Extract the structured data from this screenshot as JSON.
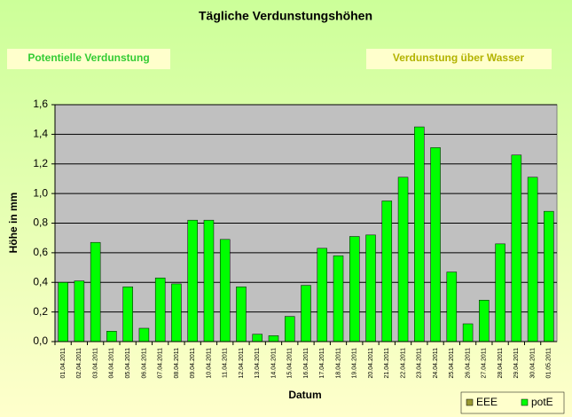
{
  "chart_data": {
    "type": "bar",
    "title": "Tägliche Verdunstungshöhen",
    "buttons": [
      "Potentielle Verdunstung",
      "Verdunstung über Wasser"
    ],
    "x_label": "Datum",
    "y_label": "Höhe in mm",
    "categories": [
      "01.04.2011",
      "02.04.2011",
      "03.04.2011",
      "04.04.2011",
      "05.04.2011",
      "06.04.2011",
      "07.04.2011",
      "08.04.2011",
      "09.04.2011",
      "10.04.2011",
      "11.04.2011",
      "12.04.2011",
      "13.04.2011",
      "14.04.2011",
      "15.04.2011",
      "16.04.2011",
      "17.04.2011",
      "18.04.2011",
      "19.04.2011",
      "20.04.2011",
      "21.04.2011",
      "22.04.2011",
      "23.04.2011",
      "24.04.2011",
      "25.04.2011",
      "26.04.2011",
      "27.04.2011",
      "28.04.2011",
      "29.04.2011",
      "30.04.2011",
      "01.05.2011"
    ],
    "series": [
      {
        "name": "EEE",
        "color": "#999933",
        "values": [
          null,
          null,
          null,
          null,
          null,
          null,
          null,
          null,
          null,
          null,
          null,
          null,
          null,
          null,
          null,
          null,
          null,
          null,
          null,
          null,
          null,
          null,
          null,
          null,
          null,
          null,
          null,
          null,
          null,
          null,
          null
        ]
      },
      {
        "name": "potE",
        "color": "#00ff00",
        "values": [
          0.4,
          0.41,
          0.67,
          0.07,
          0.37,
          0.09,
          0.43,
          0.39,
          0.82,
          0.82,
          0.69,
          0.37,
          0.05,
          0.04,
          0.17,
          0.38,
          0.63,
          0.58,
          0.71,
          0.72,
          0.95,
          1.11,
          1.45,
          1.31,
          0.47,
          0.12,
          0.28,
          0.66,
          1.26,
          1.11,
          0.88
        ]
      }
    ],
    "ylim": [
      0,
      1.6
    ],
    "yticks": [
      {
        "value": 0,
        "label": "0,0"
      },
      {
        "value": 0.2,
        "label": "0,2"
      },
      {
        "value": 0.4,
        "label": "0,4"
      },
      {
        "value": 0.6,
        "label": "0,6"
      },
      {
        "value": 0.8,
        "label": "0,8"
      },
      {
        "value": 1.0,
        "label": "1,0"
      },
      {
        "value": 1.2,
        "label": "1,2"
      },
      {
        "value": 1.4,
        "label": "1,4"
      },
      {
        "value": 1.6,
        "label": "1,6"
      }
    ],
    "grid": true,
    "legend": "bottom-right"
  }
}
